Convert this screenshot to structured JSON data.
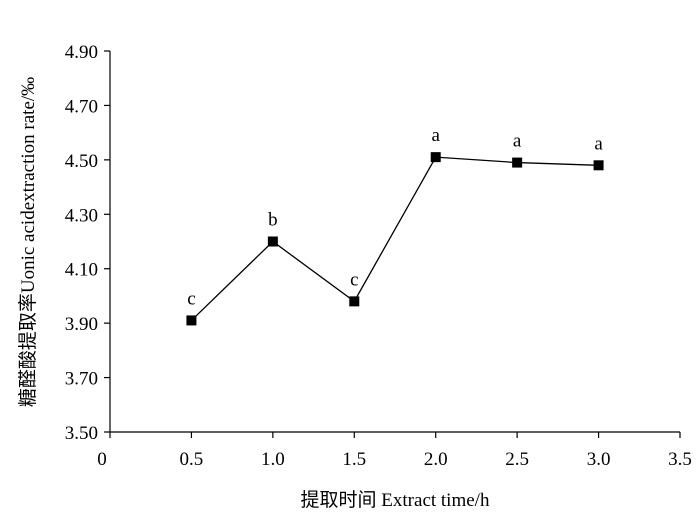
{
  "chart_data": {
    "type": "line",
    "title": "",
    "xlabel": "提取时间 Extract time/h",
    "ylabel": "糖醛酸提取率Uonic acidextraction rate/‰",
    "xlim": [
      0,
      3.5
    ],
    "ylim": [
      3.5,
      4.9
    ],
    "x_ticks": [
      "0",
      "0.5",
      "1.0",
      "1.5",
      "2.0",
      "2.5",
      "3.0",
      "3.5"
    ],
    "y_ticks": [
      "3.50",
      "3.70",
      "3.90",
      "4.10",
      "4.30",
      "4.50",
      "4.70",
      "4.90"
    ],
    "series": [
      {
        "name": "extraction rate",
        "x": [
          0.5,
          1.0,
          1.5,
          2.0,
          2.5,
          3.0
        ],
        "values": [
          3.91,
          4.2,
          3.98,
          4.51,
          4.49,
          4.48
        ],
        "significance": [
          "c",
          "b",
          "c",
          "a",
          "a",
          "a"
        ]
      }
    ],
    "marker": "square",
    "line_color": "#000000",
    "marker_color": "#000000"
  }
}
